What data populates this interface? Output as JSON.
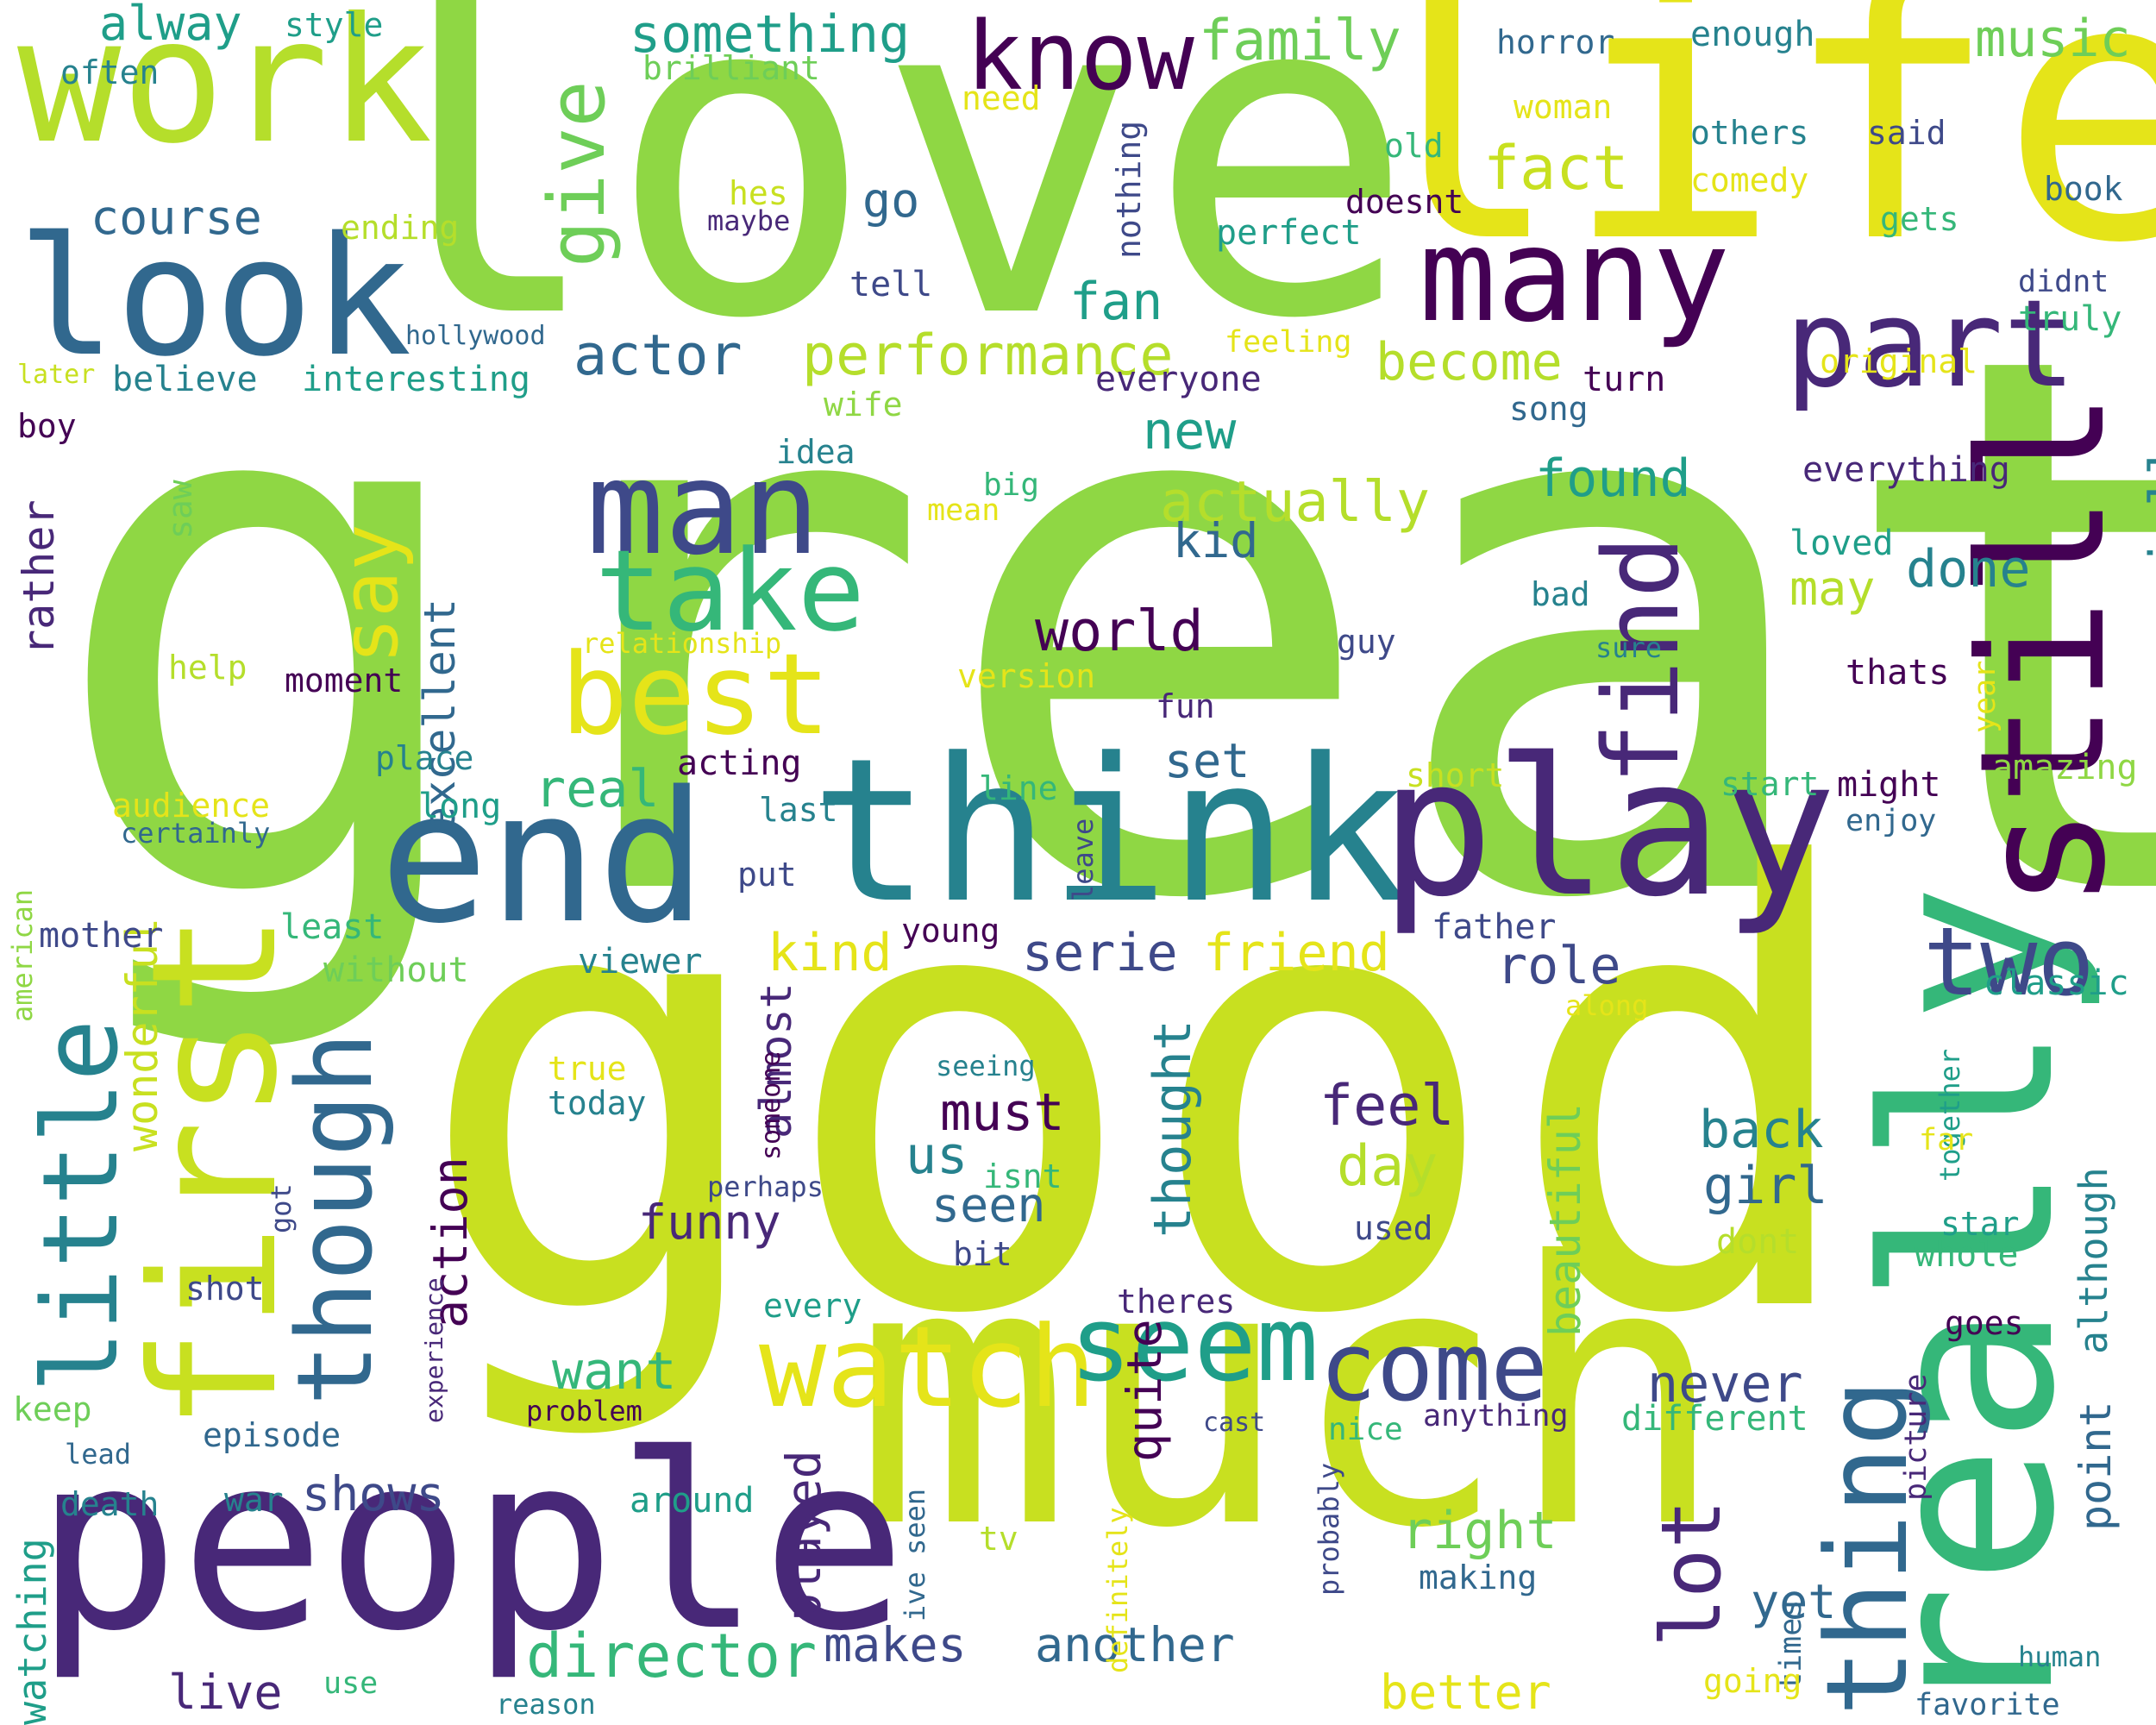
{
  "colors": {
    "background": "#ffffff",
    "palette": [
      "#440154",
      "#482878",
      "#3e4989",
      "#31688e",
      "#26828e",
      "#1f9e89",
      "#35b779",
      "#6ece58",
      "#8fd744",
      "#b5de2b",
      "#c8e020",
      "#e5e419",
      "#fde725"
    ]
  },
  "words": [
    {
      "text": "great",
      "color": "#8fd744",
      "vertical": false
    },
    {
      "text": "good",
      "color": "#c8e020",
      "vertical": false
    },
    {
      "text": "love",
      "color": "#8fd744",
      "vertical": false
    },
    {
      "text": "life",
      "color": "#e5e419",
      "vertical": false
    },
    {
      "text": "much",
      "color": "#c8e020",
      "vertical": false
    },
    {
      "text": "people",
      "color": "#482878",
      "vertical": false
    },
    {
      "text": "think",
      "color": "#26828e",
      "vertical": false
    },
    {
      "text": "play",
      "color": "#482878",
      "vertical": false
    },
    {
      "text": "end",
      "color": "#31688e",
      "vertical": false
    },
    {
      "text": "work",
      "color": "#b5de2b",
      "vertical": false
    },
    {
      "text": "look",
      "color": "#31688e",
      "vertical": false
    },
    {
      "text": "really",
      "color": "#35b779",
      "vertical": true
    },
    {
      "text": "still",
      "color": "#440154",
      "vertical": true
    },
    {
      "text": "first",
      "color": "#c8e020",
      "vertical": true
    },
    {
      "text": "many",
      "color": "#440154",
      "vertical": false
    },
    {
      "text": "part",
      "color": "#482878",
      "vertical": false
    },
    {
      "text": "man",
      "color": "#3e4989",
      "vertical": false
    },
    {
      "text": "take",
      "color": "#35b779",
      "vertical": false
    },
    {
      "text": "best",
      "color": "#e5e419",
      "vertical": false
    },
    {
      "text": "watch",
      "color": "#e5e419",
      "vertical": false
    },
    {
      "text": "seem",
      "color": "#1f9e89",
      "vertical": false
    },
    {
      "text": "come",
      "color": "#3e4989",
      "vertical": false
    },
    {
      "text": "two",
      "color": "#3e4989",
      "vertical": false
    },
    {
      "text": "thing",
      "color": "#31688e",
      "vertical": true
    },
    {
      "text": "though",
      "color": "#31688e",
      "vertical": true
    },
    {
      "text": "little",
      "color": "#26828e",
      "vertical": true
    },
    {
      "text": "find",
      "color": "#482878",
      "vertical": true
    },
    {
      "text": "know",
      "color": "#440154",
      "vertical": false
    },
    {
      "text": "give",
      "color": "#6ece58",
      "vertical": true
    },
    {
      "text": "say",
      "color": "#e5e419",
      "vertical": true
    },
    {
      "text": "lot",
      "color": "#482878",
      "vertical": true
    },
    {
      "text": "director",
      "color": "#35b779",
      "vertical": false
    },
    {
      "text": "performance",
      "color": "#b5de2b",
      "vertical": false
    },
    {
      "text": "actually",
      "color": "#b5de2b",
      "vertical": false
    },
    {
      "text": "actor",
      "color": "#31688e",
      "vertical": false
    },
    {
      "text": "something",
      "color": "#1f9e89",
      "vertical": false
    },
    {
      "text": "family",
      "color": "#6ece58",
      "vertical": false
    },
    {
      "text": "music",
      "color": "#6ece58",
      "vertical": false
    },
    {
      "text": "fact",
      "color": "#c8e020",
      "vertical": false
    },
    {
      "text": "world",
      "color": "#440154",
      "vertical": false
    },
    {
      "text": "feel",
      "color": "#482878",
      "vertical": false
    },
    {
      "text": "back",
      "color": "#26828e",
      "vertical": false
    },
    {
      "text": "girl",
      "color": "#31688e",
      "vertical": false
    },
    {
      "text": "day",
      "color": "#b5de2b",
      "vertical": false
    },
    {
      "text": "must",
      "color": "#440154",
      "vertical": false
    },
    {
      "text": "us",
      "color": "#26828e",
      "vertical": false
    },
    {
      "text": "seen",
      "color": "#31688e",
      "vertical": false
    },
    {
      "text": "funny",
      "color": "#482878",
      "vertical": false
    },
    {
      "text": "real",
      "color": "#35b779",
      "vertical": false
    },
    {
      "text": "set",
      "color": "#31688e",
      "vertical": false
    },
    {
      "text": "new",
      "color": "#1f9e89",
      "vertical": false
    },
    {
      "text": "kid",
      "color": "#31688e",
      "vertical": false
    },
    {
      "text": "fan",
      "color": "#1f9e89",
      "vertical": false
    },
    {
      "text": "found",
      "color": "#1f9e89",
      "vertical": false
    },
    {
      "text": "done",
      "color": "#26828e",
      "vertical": false
    },
    {
      "text": "may",
      "color": "#b5de2b",
      "vertical": false
    },
    {
      "text": "become",
      "color": "#b5de2b",
      "vertical": false
    },
    {
      "text": "role",
      "color": "#3e4989",
      "vertical": false
    },
    {
      "text": "serie",
      "color": "#3e4989",
      "vertical": false
    },
    {
      "text": "friend",
      "color": "#e5e419",
      "vertical": false
    },
    {
      "text": "kind",
      "color": "#e5e419",
      "vertical": false
    },
    {
      "text": "want",
      "color": "#35b779",
      "vertical": false
    },
    {
      "text": "never",
      "color": "#3e4989",
      "vertical": false
    },
    {
      "text": "yet",
      "color": "#31688e",
      "vertical": false
    },
    {
      "text": "right",
      "color": "#6ece58",
      "vertical": false
    },
    {
      "text": "shows",
      "color": "#3e4989",
      "vertical": false
    },
    {
      "text": "makes",
      "color": "#3e4989",
      "vertical": false
    },
    {
      "text": "another",
      "color": "#31688e",
      "vertical": false
    },
    {
      "text": "better",
      "color": "#e5e419",
      "vertical": false
    },
    {
      "text": "live",
      "color": "#482878",
      "vertical": false
    },
    {
      "text": "course",
      "color": "#31688e",
      "vertical": false
    },
    {
      "text": "go",
      "color": "#31688e",
      "vertical": false
    },
    {
      "text": "alway",
      "color": "#1f9e89",
      "vertical": false
    },
    {
      "text": "especially",
      "color": "#26828e",
      "vertical": true
    },
    {
      "text": "excellent",
      "color": "#31688e",
      "vertical": true
    },
    {
      "text": "wonderful",
      "color": "#c8e020",
      "vertical": true
    },
    {
      "text": "action",
      "color": "#440154",
      "vertical": true
    },
    {
      "text": "almost",
      "color": "#482878",
      "vertical": true
    },
    {
      "text": "thought",
      "color": "#26828e",
      "vertical": true
    },
    {
      "text": "beautiful",
      "color": "#6ece58",
      "vertical": true
    },
    {
      "text": "quite",
      "color": "#440154",
      "vertical": true
    },
    {
      "text": "played",
      "color": "#482878",
      "vertical": true
    },
    {
      "text": "point",
      "color": "#31688e",
      "vertical": true
    },
    {
      "text": "although",
      "color": "#26828e",
      "vertical": true
    },
    {
      "text": "rather",
      "color": "#482878",
      "vertical": true
    },
    {
      "text": "watching",
      "color": "#1f9e89",
      "vertical": true
    },
    {
      "text": "nothing",
      "color": "#3e4989",
      "vertical": true
    },
    {
      "text": "horror",
      "color": "#31688e",
      "vertical": false
    },
    {
      "text": "enough",
      "color": "#26828e",
      "vertical": false
    },
    {
      "text": "others",
      "color": "#26828e",
      "vertical": false
    },
    {
      "text": "said",
      "color": "#3e4989",
      "vertical": false
    },
    {
      "text": "comedy",
      "color": "#e5e419",
      "vertical": false
    },
    {
      "text": "book",
      "color": "#31688e",
      "vertical": false
    },
    {
      "text": "gets",
      "color": "#35b779",
      "vertical": false
    },
    {
      "text": "didnt",
      "color": "#3e4989",
      "vertical": false
    },
    {
      "text": "truly",
      "color": "#35b779",
      "vertical": false
    },
    {
      "text": "original",
      "color": "#e5e419",
      "vertical": false
    },
    {
      "text": "everything",
      "color": "#482878",
      "vertical": false
    },
    {
      "text": "loved",
      "color": "#1f9e89",
      "vertical": false
    },
    {
      "text": "bad",
      "color": "#26828e",
      "vertical": false
    },
    {
      "text": "sure",
      "color": "#26828e",
      "vertical": false
    },
    {
      "text": "thats",
      "color": "#440154",
      "vertical": false
    },
    {
      "text": "year",
      "color": "#e5e419",
      "vertical": true
    },
    {
      "text": "amazing",
      "color": "#8fd744",
      "vertical": false
    },
    {
      "text": "start",
      "color": "#35b779",
      "vertical": false
    },
    {
      "text": "might",
      "color": "#440154",
      "vertical": false
    },
    {
      "text": "enjoy",
      "color": "#31688e",
      "vertical": false
    },
    {
      "text": "classic",
      "color": "#1f9e89",
      "vertical": false
    },
    {
      "text": "together",
      "color": "#1f9e89",
      "vertical": true
    },
    {
      "text": "far",
      "color": "#e5e419",
      "vertical": false
    },
    {
      "text": "star",
      "color": "#1f9e89",
      "vertical": false
    },
    {
      "text": "whole",
      "color": "#35b779",
      "vertical": false
    },
    {
      "text": "goes",
      "color": "#440154",
      "vertical": false
    },
    {
      "text": "dont",
      "color": "#b5de2b",
      "vertical": false
    },
    {
      "text": "different",
      "color": "#35b779",
      "vertical": false
    },
    {
      "text": "anything",
      "color": "#482878",
      "vertical": false
    },
    {
      "text": "picture",
      "color": "#482878",
      "vertical": true
    },
    {
      "text": "times",
      "color": "#31688e",
      "vertical": true
    },
    {
      "text": "human",
      "color": "#26828e",
      "vertical": false
    },
    {
      "text": "favorite",
      "color": "#31688e",
      "vertical": false
    },
    {
      "text": "going",
      "color": "#e5e419",
      "vertical": false
    },
    {
      "text": "along",
      "color": "#e5e419",
      "vertical": false
    },
    {
      "text": "old",
      "color": "#35b779",
      "vertical": false
    },
    {
      "text": "woman",
      "color": "#e5e419",
      "vertical": false
    },
    {
      "text": "doesnt",
      "color": "#440154",
      "vertical": false
    },
    {
      "text": "perfect",
      "color": "#1f9e89",
      "vertical": false
    },
    {
      "text": "feeling",
      "color": "#e5e419",
      "vertical": false
    },
    {
      "text": "everyone",
      "color": "#482878",
      "vertical": false
    },
    {
      "text": "turn",
      "color": "#440154",
      "vertical": false
    },
    {
      "text": "song",
      "color": "#31688e",
      "vertical": false
    },
    {
      "text": "tell",
      "color": "#3e4989",
      "vertical": false
    },
    {
      "text": "hes",
      "color": "#c8e020",
      "vertical": false
    },
    {
      "text": "maybe",
      "color": "#482878",
      "vertical": false
    },
    {
      "text": "need",
      "color": "#e5e419",
      "vertical": false
    },
    {
      "text": "brilliant",
      "color": "#6ece58",
      "vertical": false
    },
    {
      "text": "style",
      "color": "#1f9e89",
      "vertical": false
    },
    {
      "text": "often",
      "color": "#26828e",
      "vertical": false
    },
    {
      "text": "ending",
      "color": "#b5de2b",
      "vertical": false
    },
    {
      "text": "hollywood",
      "color": "#31688e",
      "vertical": false
    },
    {
      "text": "later",
      "color": "#c8e020",
      "vertical": false
    },
    {
      "text": "believe",
      "color": "#26828e",
      "vertical": false
    },
    {
      "text": "interesting",
      "color": "#1f9e89",
      "vertical": false
    },
    {
      "text": "boy",
      "color": "#440154",
      "vertical": false
    },
    {
      "text": "wife",
      "color": "#8fd744",
      "vertical": false
    },
    {
      "text": "idea",
      "color": "#26828e",
      "vertical": false
    },
    {
      "text": "big",
      "color": "#35b779",
      "vertical": false
    },
    {
      "text": "mean",
      "color": "#e5e419",
      "vertical": false
    },
    {
      "text": "saw",
      "color": "#6ece58",
      "vertical": true
    },
    {
      "text": "relationship",
      "color": "#e5e419",
      "vertical": false
    },
    {
      "text": "help",
      "color": "#b5de2b",
      "vertical": false
    },
    {
      "text": "moment",
      "color": "#440154",
      "vertical": false
    },
    {
      "text": "version",
      "color": "#e5e419",
      "vertical": false
    },
    {
      "text": "guy",
      "color": "#3e4989",
      "vertical": false
    },
    {
      "text": "fun",
      "color": "#482878",
      "vertical": false
    },
    {
      "text": "place",
      "color": "#26828e",
      "vertical": false
    },
    {
      "text": "acting",
      "color": "#440154",
      "vertical": false
    },
    {
      "text": "audience",
      "color": "#e5e419",
      "vertical": false
    },
    {
      "text": "long",
      "color": "#1f9e89",
      "vertical": false
    },
    {
      "text": "last",
      "color": "#26828e",
      "vertical": false
    },
    {
      "text": "short",
      "color": "#c8e020",
      "vertical": false
    },
    {
      "text": "line",
      "color": "#35b779",
      "vertical": false
    },
    {
      "text": "certainly",
      "color": "#31688e",
      "vertical": false
    },
    {
      "text": "put",
      "color": "#3e4989",
      "vertical": false
    },
    {
      "text": "leave",
      "color": "#3e4989",
      "vertical": true
    },
    {
      "text": "american",
      "color": "#8fd744",
      "vertical": true
    },
    {
      "text": "mother",
      "color": "#3e4989",
      "vertical": false
    },
    {
      "text": "least",
      "color": "#35b779",
      "vertical": false
    },
    {
      "text": "young",
      "color": "#440154",
      "vertical": false
    },
    {
      "text": "father",
      "color": "#3e4989",
      "vertical": false
    },
    {
      "text": "without",
      "color": "#6ece58",
      "vertical": false
    },
    {
      "text": "viewer",
      "color": "#26828e",
      "vertical": false
    },
    {
      "text": "true",
      "color": "#e5e419",
      "vertical": false
    },
    {
      "text": "today",
      "color": "#26828e",
      "vertical": false
    },
    {
      "text": "seeing",
      "color": "#26828e",
      "vertical": false
    },
    {
      "text": "someone",
      "color": "#440154",
      "vertical": true
    },
    {
      "text": "isnt",
      "color": "#35b779",
      "vertical": false
    },
    {
      "text": "perhaps",
      "color": "#3e4989",
      "vertical": false
    },
    {
      "text": "used",
      "color": "#3e4989",
      "vertical": false
    },
    {
      "text": "got",
      "color": "#3e4989",
      "vertical": true
    },
    {
      "text": "bit",
      "color": "#3e4989",
      "vertical": false
    },
    {
      "text": "shot",
      "color": "#3e4989",
      "vertical": false
    },
    {
      "text": "every",
      "color": "#1f9e89",
      "vertical": false
    },
    {
      "text": "theres",
      "color": "#482878",
      "vertical": false
    },
    {
      "text": "experience",
      "color": "#482878",
      "vertical": true
    },
    {
      "text": "keep",
      "color": "#6ece58",
      "vertical": false
    },
    {
      "text": "episode",
      "color": "#31688e",
      "vertical": false
    },
    {
      "text": "lead",
      "color": "#31688e",
      "vertical": false
    },
    {
      "text": "problem",
      "color": "#440154",
      "vertical": false
    },
    {
      "text": "cast",
      "color": "#3e4989",
      "vertical": false
    },
    {
      "text": "nice",
      "color": "#35b779",
      "vertical": false
    },
    {
      "text": "probably",
      "color": "#3e4989",
      "vertical": true
    },
    {
      "text": "death",
      "color": "#26828e",
      "vertical": false
    },
    {
      "text": "war",
      "color": "#26828e",
      "vertical": false
    },
    {
      "text": "around",
      "color": "#1f9e89",
      "vertical": false
    },
    {
      "text": "tv",
      "color": "#b5de2b",
      "vertical": false
    },
    {
      "text": "definitely",
      "color": "#e5e419",
      "vertical": true
    },
    {
      "text": "ive seen",
      "color": "#31688e",
      "vertical": true
    },
    {
      "text": "making",
      "color": "#31688e",
      "vertical": false
    },
    {
      "text": "use",
      "color": "#35b779",
      "vertical": false
    },
    {
      "text": "reason",
      "color": "#26828e",
      "vertical": false
    }
  ]
}
